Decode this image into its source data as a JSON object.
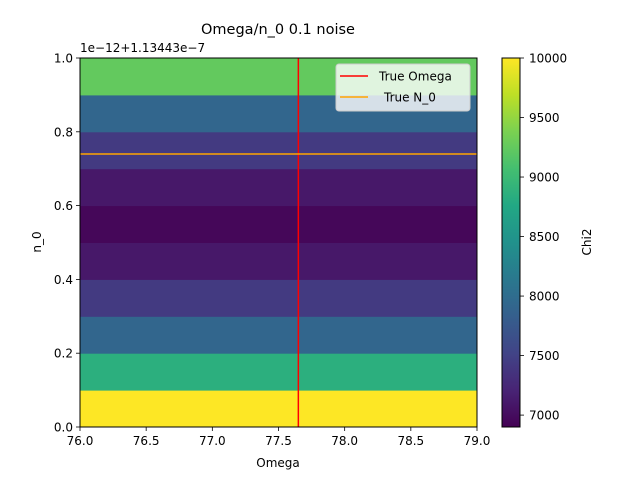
{
  "chart_data": {
    "type": "heatmap",
    "title": "Omega/n_0 0.1 noise",
    "xlabel": "Omega",
    "ylabel": "n_0",
    "offset_text": "1e−12+1.13443e−7",
    "xlim": [
      76.0,
      79.0
    ],
    "ylim": [
      0.0,
      1.0
    ],
    "x_ticks": [
      "76.0",
      "76.5",
      "77.0",
      "77.5",
      "78.0",
      "78.5",
      "79.0"
    ],
    "x_tick_values": [
      76.0,
      76.5,
      77.0,
      77.5,
      78.0,
      78.5,
      79.0
    ],
    "y_ticks": [
      "0.0",
      "0.2",
      "0.4",
      "0.6",
      "0.8",
      "1.0"
    ],
    "y_tick_values": [
      0.0,
      0.2,
      0.4,
      0.6,
      0.8,
      1.0
    ],
    "rows": [
      {
        "y0": 0.0,
        "y1": 0.1,
        "chi2": 10000
      },
      {
        "y0": 0.1,
        "y1": 0.2,
        "chi2": 8850
      },
      {
        "y0": 0.2,
        "y1": 0.3,
        "chi2": 7920
      },
      {
        "y0": 0.3,
        "y1": 0.4,
        "chi2": 7420
      },
      {
        "y0": 0.4,
        "y1": 0.5,
        "chi2": 7100
      },
      {
        "y0": 0.5,
        "y1": 0.6,
        "chi2": 6950
      },
      {
        "y0": 0.6,
        "y1": 0.7,
        "chi2": 7100
      },
      {
        "y0": 0.7,
        "y1": 0.8,
        "chi2": 7420
      },
      {
        "y0": 0.8,
        "y1": 0.9,
        "chi2": 7920
      },
      {
        "y0": 0.9,
        "y1": 1.0,
        "chi2": 9250
      }
    ],
    "true_omega": 77.65,
    "true_n0": 0.74,
    "legend": {
      "placement": "upper-right",
      "entries": [
        {
          "label": "True Omega",
          "color": "#ff0000"
        },
        {
          "label": "True N_0",
          "color": "#ffa500"
        }
      ]
    },
    "colorbar": {
      "label": "Chi2",
      "range": [
        6900,
        10000
      ],
      "ticks": [
        "7000",
        "7500",
        "8000",
        "8500",
        "9000",
        "9500",
        "10000"
      ],
      "tick_values": [
        7000,
        7500,
        8000,
        8500,
        9000,
        9500,
        10000
      ]
    },
    "colormap": "viridis"
  }
}
